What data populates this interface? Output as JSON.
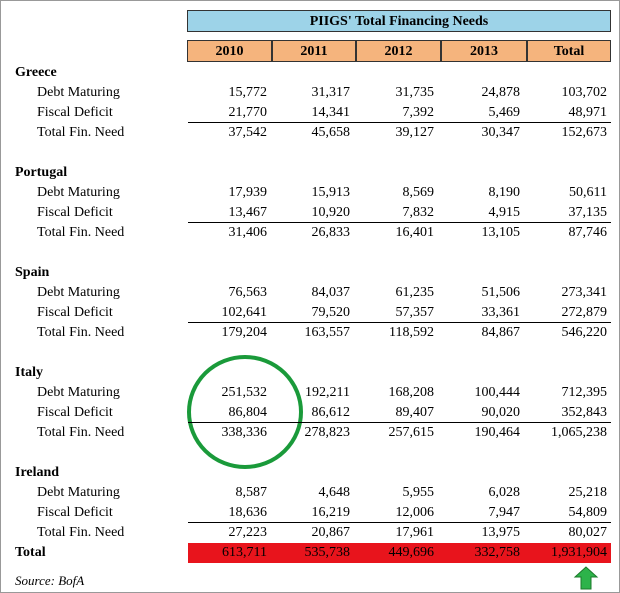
{
  "title": "PIIGS' Total Financing Needs",
  "columns": [
    "2010",
    "2011",
    "2012",
    "2013",
    "Total"
  ],
  "sections": [
    {
      "name": "Greece",
      "rows": [
        {
          "label": "Debt Maturing",
          "values": [
            "15,772",
            "31,317",
            "31,735",
            "24,878",
            "103,702"
          ]
        },
        {
          "label": "Fiscal Deficit",
          "values": [
            "21,770",
            "14,341",
            "7,392",
            "5,469",
            "48,971"
          ]
        },
        {
          "label": "Total Fin. Need",
          "values": [
            "37,542",
            "45,658",
            "39,127",
            "30,347",
            "152,673"
          ]
        }
      ]
    },
    {
      "name": "Portugal",
      "rows": [
        {
          "label": "Debt Maturing",
          "values": [
            "17,939",
            "15,913",
            "8,569",
            "8,190",
            "50,611"
          ]
        },
        {
          "label": "Fiscal Deficit",
          "values": [
            "13,467",
            "10,920",
            "7,832",
            "4,915",
            "37,135"
          ]
        },
        {
          "label": "Total Fin. Need",
          "values": [
            "31,406",
            "26,833",
            "16,401",
            "13,105",
            "87,746"
          ]
        }
      ]
    },
    {
      "name": "Spain",
      "rows": [
        {
          "label": "Debt Maturing",
          "values": [
            "76,563",
            "84,037",
            "61,235",
            "51,506",
            "273,341"
          ]
        },
        {
          "label": "Fiscal Deficit",
          "values": [
            "102,641",
            "79,520",
            "57,357",
            "33,361",
            "272,879"
          ]
        },
        {
          "label": "Total Fin. Need",
          "values": [
            "179,204",
            "163,557",
            "118,592",
            "84,867",
            "546,220"
          ]
        }
      ]
    },
    {
      "name": "Italy",
      "rows": [
        {
          "label": "Debt Maturing",
          "values": [
            "251,532",
            "192,211",
            "168,208",
            "100,444",
            "712,395"
          ]
        },
        {
          "label": "Fiscal Deficit",
          "values": [
            "86,804",
            "86,612",
            "89,407",
            "90,020",
            "352,843"
          ]
        },
        {
          "label": "Total Fin. Need",
          "values": [
            "338,336",
            "278,823",
            "257,615",
            "190,464",
            "1,065,238"
          ]
        }
      ]
    },
    {
      "name": "Ireland",
      "rows": [
        {
          "label": "Debt Maturing",
          "values": [
            "8,587",
            "4,648",
            "5,955",
            "6,028",
            "25,218"
          ]
        },
        {
          "label": "Fiscal Deficit",
          "values": [
            "18,636",
            "16,219",
            "12,006",
            "7,947",
            "54,809"
          ]
        },
        {
          "label": "Total Fin. Need",
          "values": [
            "27,223",
            "20,867",
            "17,961",
            "13,975",
            "80,027"
          ]
        }
      ]
    }
  ],
  "total": {
    "label": "Total",
    "values": [
      "613,711",
      "535,738",
      "449,696",
      "332,758",
      "1,931,904"
    ]
  },
  "source": "Source: BofA"
}
